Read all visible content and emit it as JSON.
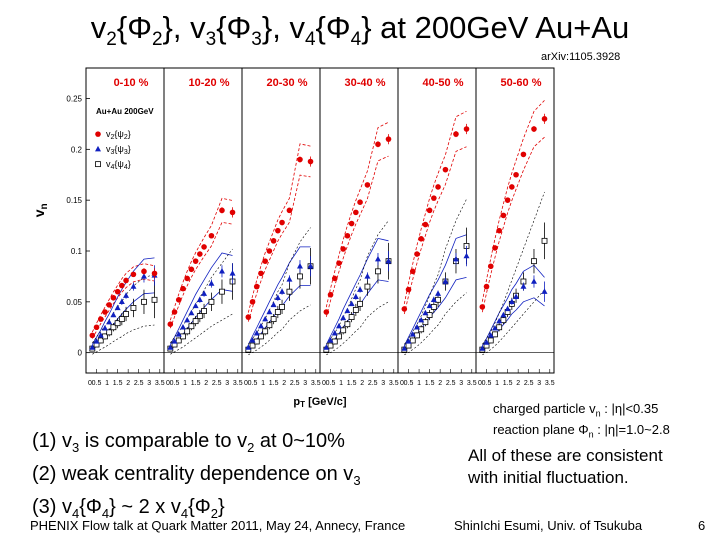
{
  "slide": {
    "title_parts": [
      "v",
      "2",
      "{",
      "Φ",
      "2",
      "}, v",
      "3",
      "{",
      "Φ",
      "3",
      "}, v",
      "4",
      "{",
      "Φ",
      "4",
      "} at 200GeV Au+Au"
    ],
    "reference": "arXiv:1105.3928",
    "acceptance": {
      "line1": [
        "charged particle v",
        "n",
        " : |η|<0.35"
      ],
      "line2": [
        "reaction plane Φ",
        "n",
        " : |η|=1.0~2.8"
      ]
    },
    "findings": [
      [
        "(1) v",
        "3",
        " is comparable to v",
        "2",
        " at 0~10%"
      ],
      [
        "(2) weak centrality dependence on v",
        "3",
        ""
      ],
      [
        "(3)  v",
        "4",
        "{Φ",
        "4",
        "} ~ 2 x v",
        "4",
        "{Φ",
        "2",
        "}"
      ]
    ],
    "conclusion": [
      "All of these are consistent",
      "with initial fluctuation."
    ],
    "footer_left": "PHENIX Flow talk at Quark Matter 2011, May 24, Annecy, France",
    "footer_author": "ShinIchi Esumi, Univ. of Tsukuba",
    "page_number": "6"
  },
  "colors": {
    "v2": "#e00000",
    "v3": "#1020c0",
    "v4": "#000000"
  },
  "chart_data": {
    "type": "scatter",
    "panels": [
      "0-10 %",
      "10-20 %",
      "20-30 %",
      "30-40 %",
      "40-50 %",
      "50-60 %"
    ],
    "system_label": "Au+Au 200GeV",
    "ylabel_main": "v",
    "ylabel_sub": "n",
    "xlabel_main": "p",
    "xlabel_sub": "T",
    "xlabel_unit": " [GeV/c]",
    "ylim": [
      -0.02,
      0.28
    ],
    "xlim": [
      0,
      3.7
    ],
    "yticks": [
      "0",
      "0.05",
      "0.1",
      "0.15",
      "0.2",
      "0.25"
    ],
    "xticks": [
      "0",
      "0.5",
      "1",
      "1.5",
      "2",
      "2.5",
      "3",
      "3.5"
    ],
    "x": [
      0.3,
      0.5,
      0.7,
      0.9,
      1.1,
      1.3,
      1.5,
      1.7,
      1.9,
      2.25,
      2.75,
      3.25
    ],
    "legend": [
      {
        "prefix": "v",
        "sub": "2",
        "brace": "{ψ",
        "sub2": "2",
        "end": "}",
        "series": "v2",
        "marker": "circle"
      },
      {
        "prefix": "v",
        "sub": "3",
        "brace": "{ψ",
        "sub2": "3",
        "end": "}",
        "series": "v3",
        "marker": "triangle"
      },
      {
        "prefix": "v",
        "sub": "4",
        "brace": "{ψ",
        "sub2": "4",
        "end": "}",
        "series": "v4",
        "marker": "square"
      }
    ],
    "series": {
      "v2": [
        [
          0.017,
          0.025,
          0.033,
          0.04,
          0.047,
          0.054,
          0.06,
          0.066,
          0.071,
          0.077,
          0.08,
          0.078
        ],
        [
          0.028,
          0.04,
          0.052,
          0.063,
          0.073,
          0.082,
          0.09,
          0.097,
          0.104,
          0.115,
          0.14,
          0.138
        ],
        [
          0.035,
          0.05,
          0.065,
          0.078,
          0.09,
          0.1,
          0.11,
          0.12,
          0.128,
          0.14,
          0.19,
          0.188
        ],
        [
          0.04,
          0.057,
          0.073,
          0.088,
          0.102,
          0.115,
          0.127,
          0.138,
          0.148,
          0.165,
          0.205,
          0.21
        ],
        [
          0.043,
          0.062,
          0.08,
          0.097,
          0.112,
          0.126,
          0.14,
          0.152,
          0.163,
          0.18,
          0.215,
          0.22
        ],
        [
          0.045,
          0.065,
          0.085,
          0.103,
          0.12,
          0.135,
          0.15,
          0.163,
          0.175,
          0.195,
          0.22,
          0.23
        ]
      ],
      "v3": [
        [
          0.005,
          0.011,
          0.017,
          0.024,
          0.03,
          0.037,
          0.044,
          0.05,
          0.056,
          0.065,
          0.075,
          0.076
        ],
        [
          0.005,
          0.011,
          0.018,
          0.025,
          0.032,
          0.039,
          0.046,
          0.052,
          0.058,
          0.068,
          0.08,
          0.078
        ],
        [
          0.005,
          0.012,
          0.019,
          0.026,
          0.033,
          0.04,
          0.047,
          0.054,
          0.06,
          0.072,
          0.085,
          0.085
        ],
        [
          0.005,
          0.012,
          0.019,
          0.026,
          0.034,
          0.041,
          0.048,
          0.055,
          0.062,
          0.075,
          0.092,
          0.09
        ],
        [
          0.004,
          0.011,
          0.018,
          0.025,
          0.032,
          0.039,
          0.046,
          0.052,
          0.058,
          0.07,
          0.092,
          0.095
        ],
        [
          0.004,
          0.01,
          0.017,
          0.024,
          0.031,
          0.037,
          0.043,
          0.05,
          0.055,
          0.065,
          0.07,
          0.06
        ]
      ],
      "v4": [
        [
          0.004,
          0.008,
          0.012,
          0.016,
          0.02,
          0.025,
          0.029,
          0.033,
          0.038,
          0.044,
          0.05,
          0.052
        ],
        [
          0.004,
          0.008,
          0.012,
          0.016,
          0.021,
          0.026,
          0.031,
          0.036,
          0.041,
          0.05,
          0.06,
          0.07
        ],
        [
          0.003,
          0.007,
          0.011,
          0.016,
          0.021,
          0.027,
          0.033,
          0.04,
          0.045,
          0.06,
          0.075,
          0.085
        ],
        [
          0.003,
          0.007,
          0.011,
          0.016,
          0.022,
          0.028,
          0.035,
          0.042,
          0.048,
          0.065,
          0.08,
          0.09
        ],
        [
          0.003,
          0.007,
          0.012,
          0.017,
          0.023,
          0.03,
          0.037,
          0.045,
          0.052,
          0.07,
          0.09,
          0.105
        ],
        [
          0.003,
          0.007,
          0.012,
          0.018,
          0.025,
          0.032,
          0.04,
          0.048,
          0.056,
          0.07,
          0.09,
          0.11
        ]
      ]
    },
    "errors": {
      "v2": [
        0.001,
        0.001,
        0.001,
        0.001,
        0.001,
        0.001,
        0.001,
        0.001,
        0.002,
        0.002,
        0.003,
        0.005
      ],
      "v3": [
        0.001,
        0.001,
        0.001,
        0.001,
        0.002,
        0.002,
        0.002,
        0.003,
        0.003,
        0.004,
        0.006,
        0.01
      ],
      "v4": [
        0.002,
        0.002,
        0.003,
        0.003,
        0.004,
        0.004,
        0.005,
        0.006,
        0.007,
        0.009,
        0.012,
        0.018
      ]
    },
    "systematic_bands": [
      "v2",
      "v3"
    ]
  }
}
